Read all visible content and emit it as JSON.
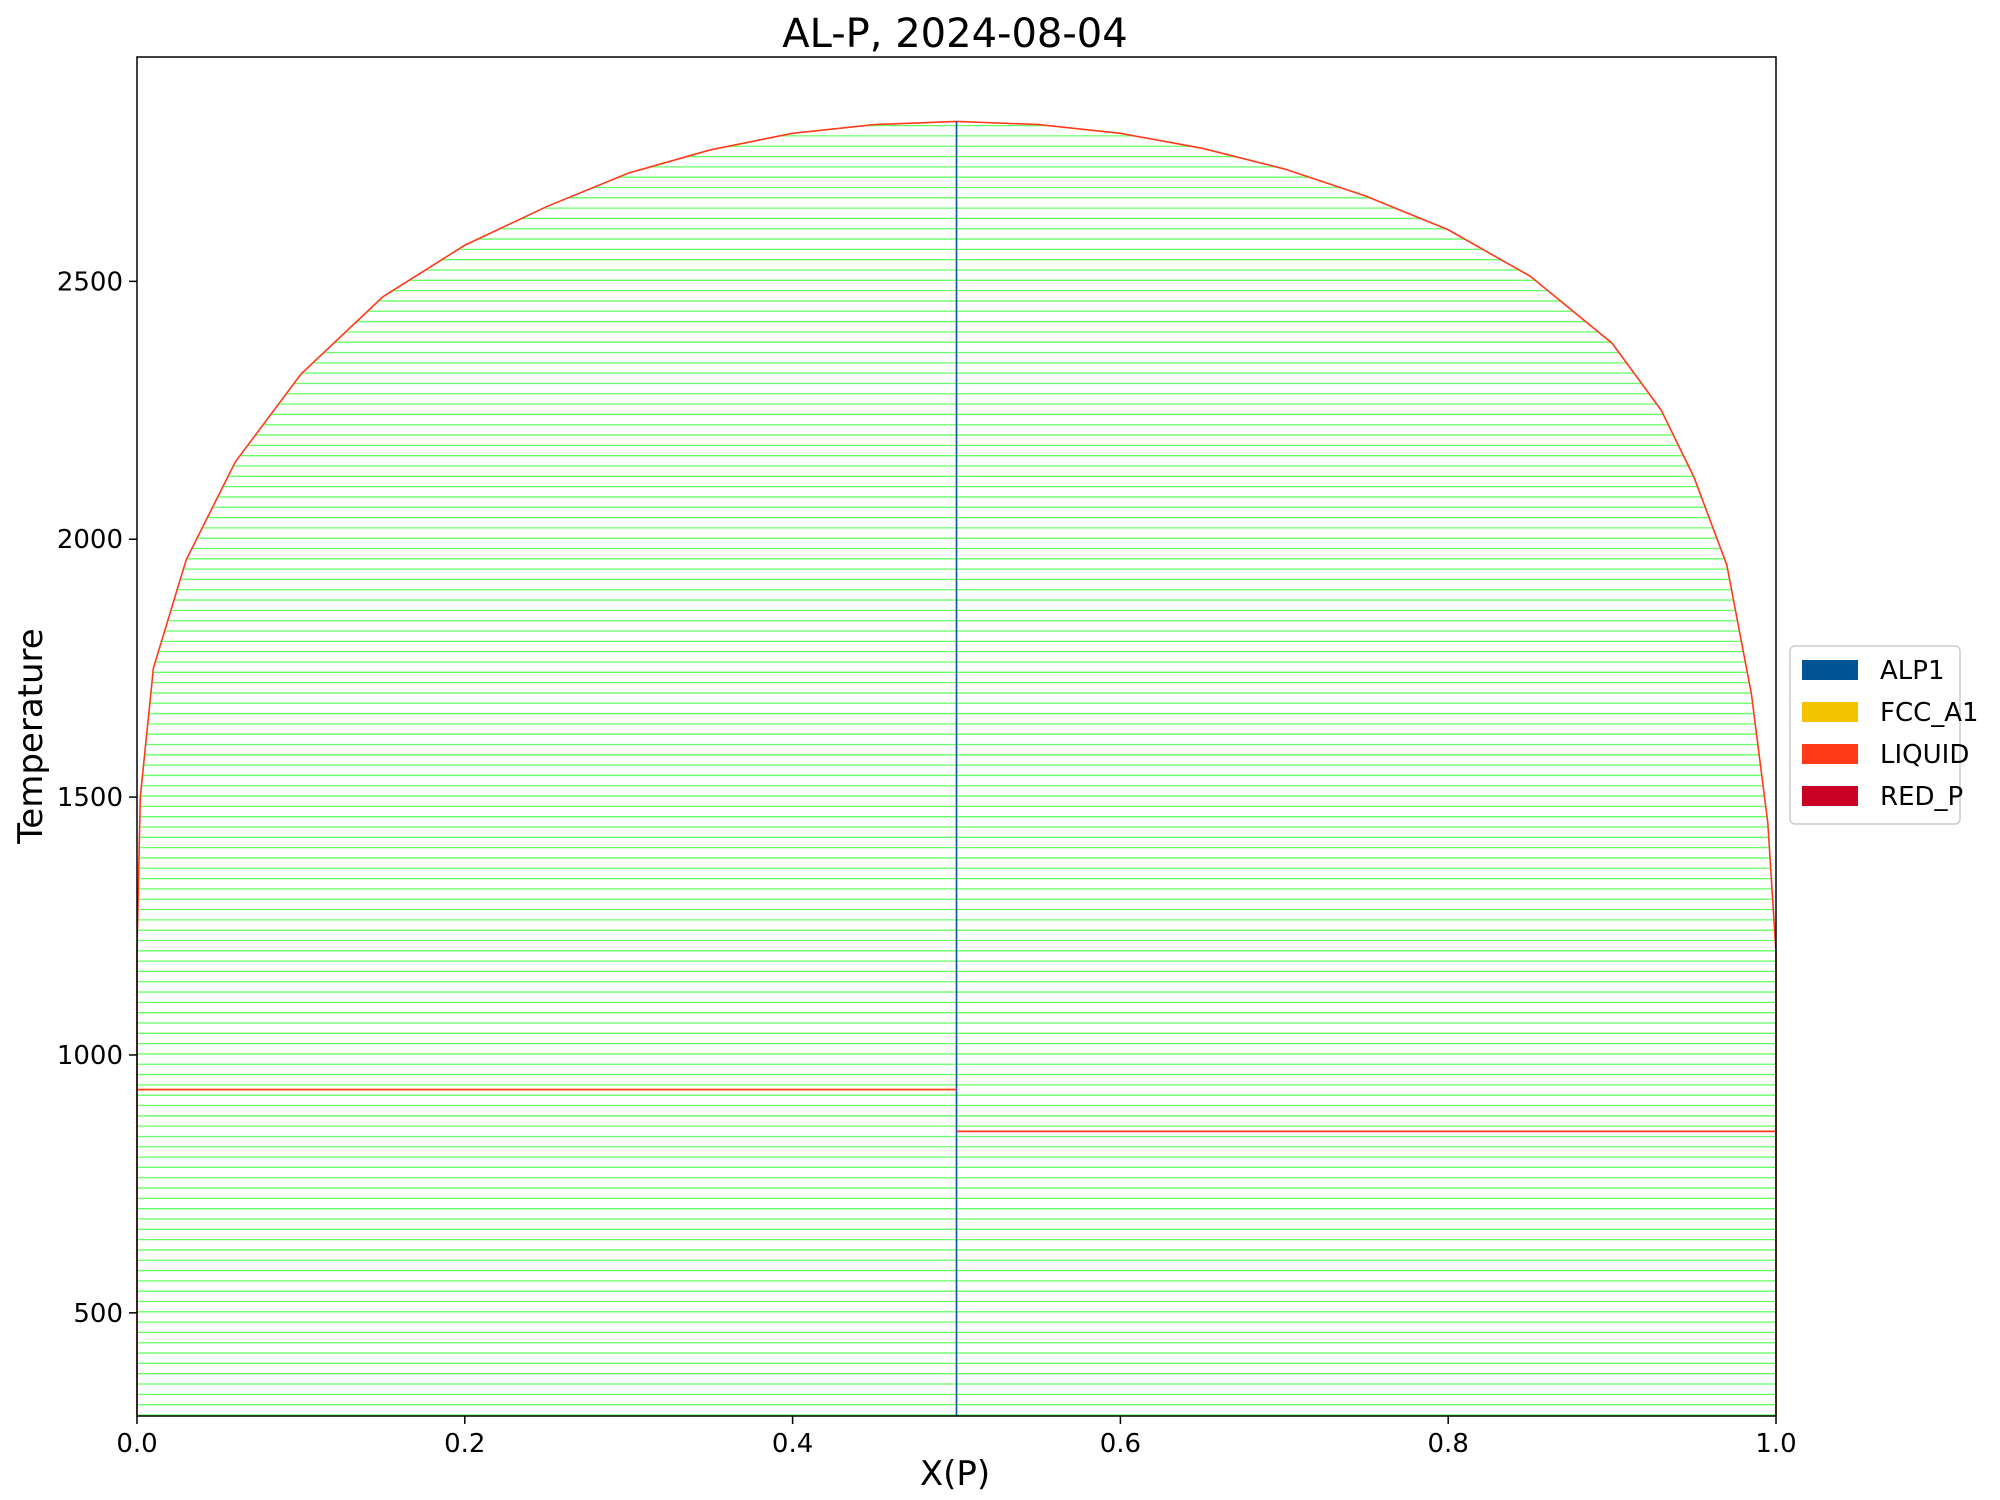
{
  "chart_data": {
    "type": "line",
    "title": "AL-P, 2024-08-04",
    "xlabel": "X(P)",
    "ylabel": "Temperature",
    "xlim": [
      0.0,
      1.0
    ],
    "ylim": [
      300,
      2935
    ],
    "x_ticks": [
      0.0,
      0.2,
      0.4,
      0.6,
      0.8,
      1.0
    ],
    "x_tick_labels": [
      "0.0",
      "0.2",
      "0.4",
      "0.6",
      "0.8",
      "1.0"
    ],
    "y_ticks": [
      500,
      1000,
      1500,
      2000,
      2500
    ],
    "y_tick_labels": [
      "500",
      "1000",
      "1500",
      "2000",
      "2500"
    ],
    "grid": false,
    "legend": {
      "placement": "center-right-outside",
      "entries": [
        {
          "name": "ALP1",
          "color": "#005596"
        },
        {
          "name": "FCC_A1",
          "color": "#F5C200"
        },
        {
          "name": "LIQUID",
          "color": "#FF3A19"
        },
        {
          "name": "RED_P",
          "color": "#C80024"
        }
      ]
    },
    "tieline_color": "#66FF66",
    "tieline_spacing": 20,
    "series": [
      {
        "name": "LIQUID",
        "color": "#FF3A19",
        "role": "liquidus-left",
        "points": [
          [
            0.0,
            1200
          ],
          [
            0.002,
            1500
          ],
          [
            0.01,
            1750
          ],
          [
            0.03,
            1960
          ],
          [
            0.06,
            2150
          ],
          [
            0.1,
            2320
          ],
          [
            0.15,
            2470
          ],
          [
            0.2,
            2570
          ],
          [
            0.25,
            2645
          ],
          [
            0.3,
            2710
          ],
          [
            0.35,
            2755
          ],
          [
            0.4,
            2787
          ],
          [
            0.45,
            2804
          ],
          [
            0.5,
            2810
          ]
        ]
      },
      {
        "name": "LIQUID",
        "color": "#FF3A19",
        "role": "liquidus-right",
        "points": [
          [
            0.5,
            2810
          ],
          [
            0.55,
            2804
          ],
          [
            0.6,
            2787
          ],
          [
            0.65,
            2758
          ],
          [
            0.7,
            2718
          ],
          [
            0.75,
            2665
          ],
          [
            0.8,
            2600
          ],
          [
            0.85,
            2510
          ],
          [
            0.9,
            2380
          ],
          [
            0.93,
            2250
          ],
          [
            0.95,
            2120
          ],
          [
            0.97,
            1950
          ],
          [
            0.985,
            1700
          ],
          [
            0.995,
            1450
          ],
          [
            1.0,
            1200
          ]
        ]
      },
      {
        "name": "LIQUID",
        "color": "#FF3A19",
        "role": "edge-left",
        "points": [
          [
            0.0,
            300
          ],
          [
            0.0,
            1200
          ]
        ]
      },
      {
        "name": "LIQUID",
        "color": "#FF3A19",
        "role": "edge-right",
        "points": [
          [
            1.0,
            300
          ],
          [
            1.0,
            1200
          ]
        ]
      },
      {
        "name": "ALP1",
        "color": "#005596",
        "role": "compound-line",
        "points": [
          [
            0.5,
            300
          ],
          [
            0.5,
            2810
          ]
        ]
      },
      {
        "name": "FCC_A1",
        "color": "#F5C200",
        "role": "eutectic-left",
        "points": [
          [
            0.0,
            933
          ],
          [
            0.5,
            933
          ]
        ]
      },
      {
        "name": "LIQUID",
        "color": "#FF3A19",
        "role": "eutectic-left",
        "points": [
          [
            0.0,
            933
          ],
          [
            0.5,
            933
          ]
        ]
      },
      {
        "name": "RED_P",
        "color": "#C80024",
        "role": "eutectic-right",
        "points": [
          [
            0.5,
            852
          ],
          [
            1.0,
            852
          ]
        ]
      },
      {
        "name": "LIQUID",
        "color": "#FF3A19",
        "role": "eutectic-right",
        "points": [
          [
            0.5,
            852
          ],
          [
            1.0,
            852
          ]
        ]
      }
    ]
  }
}
